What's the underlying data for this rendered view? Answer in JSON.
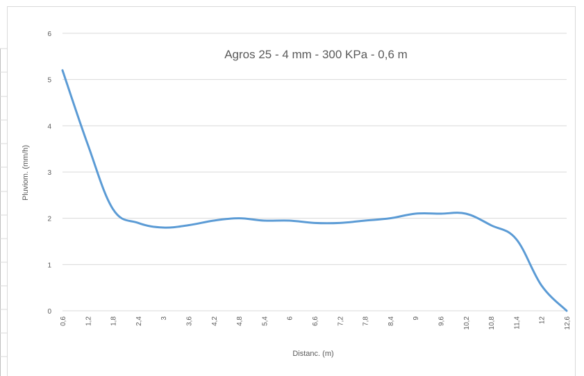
{
  "chart_data": {
    "type": "line",
    "title": "Agros 25 - 4 mm - 300 KPa - 0,6 m",
    "xlabel": "Distanc. (m)",
    "ylabel": "Pluviom. (mm/h)",
    "categories": [
      "0,6",
      "1,2",
      "1,8",
      "2,4",
      "3",
      "3,6",
      "4,2",
      "4,8",
      "5,4",
      "6",
      "6,6",
      "7,2",
      "7,8",
      "8,4",
      "9",
      "9,6",
      "10,2",
      "10,8",
      "11,4",
      "12",
      "12,6"
    ],
    "series": [
      {
        "values": [
          5.2,
          3.6,
          2.2,
          1.9,
          1.8,
          1.85,
          1.95,
          2.0,
          1.95,
          1.95,
          1.9,
          1.9,
          1.95,
          2.0,
          2.1,
          2.1,
          2.1,
          1.85,
          1.55,
          0.55,
          0.0
        ]
      }
    ],
    "ylim": [
      0,
      6
    ],
    "yticks": [
      0,
      1,
      2,
      3,
      4,
      5,
      6
    ],
    "grid": true,
    "legend": "none",
    "line_color": "#5b9bd5",
    "grid_color": "#d9d9d9"
  }
}
